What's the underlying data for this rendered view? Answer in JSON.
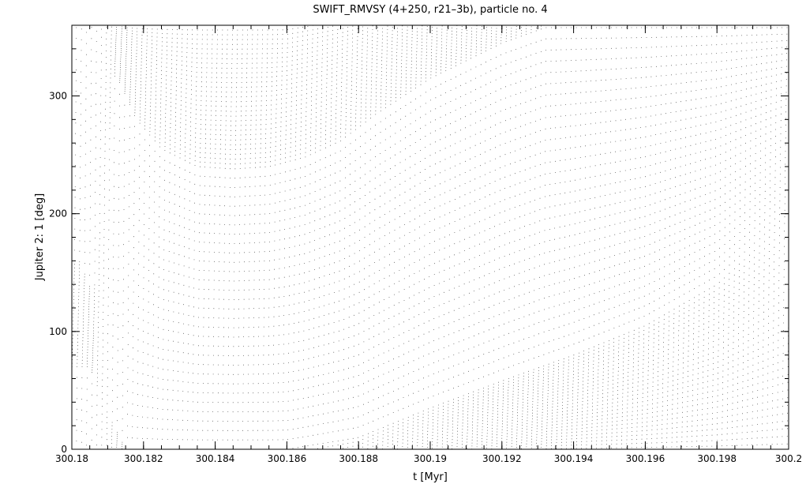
{
  "chart_data": {
    "type": "scatter",
    "title": "SWIFT_RMVSY (4+250, r21–3b), particle no. 4",
    "xlabel": "t [Myr]",
    "ylabel": "Jupiter  2: 1 [deg]",
    "xlim": [
      300.18,
      300.2
    ],
    "ylim": [
      0,
      360
    ],
    "x_ticks": [
      "300.18",
      "300.182",
      "300.184",
      "300.186",
      "300.188",
      "300.19",
      "300.192",
      "300.194",
      "300.196",
      "300.198",
      "300.2"
    ],
    "x_tick_values": [
      300.18,
      300.182,
      300.184,
      300.186,
      300.188,
      300.19,
      300.192,
      300.194,
      300.196,
      300.198,
      300.2
    ],
    "y_ticks": [
      "0",
      "100",
      "200",
      "300"
    ],
    "y_tick_values": [
      0,
      100,
      200,
      300
    ],
    "grid": false,
    "marker": "dot",
    "series": [
      {
        "description_of_trend": "dense vertical oscillations sweeping 0-360 deg",
        "envelopes": [
          {
            "x": [
              300.1802,
              300.1806,
              300.1812,
              300.1818,
              300.1825,
              300.1835,
              300.1845,
              300.1855,
              300.1865,
              300.1875,
              300.1885,
              300.19,
              300.192,
              300.1932
            ],
            "y": [
              160,
              130,
              320,
              280,
              255,
              240,
              238,
              240,
              248,
              262,
              285,
              315,
              345,
              358
            ]
          },
          {
            "x": [
              300.1815,
              300.182,
              300.1825,
              300.183,
              300.1835,
              300.184,
              300.1848,
              300.1856,
              300.1864,
              300.187
            ],
            "y": [
              345,
              325,
              310,
              302,
              300,
              302,
              308,
              320,
              338,
              350
            ]
          },
          {
            "x": [
              300.1805,
              300.181,
              300.1815,
              300.1825,
              300.184,
              300.186,
              300.188,
              300.19,
              300.192,
              300.194,
              300.196,
              300.198,
              300.2
            ],
            "y": [
              70,
              30,
              0,
              0,
              0,
              0,
              10,
              35,
              58,
              80,
              105,
              140,
              195
            ]
          },
          {
            "x": [
              300.193,
              300.194,
              300.196,
              300.198,
              300.2
            ],
            "y": [
              0,
              10,
              40,
              90,
              128
            ]
          }
        ]
      }
    ]
  }
}
